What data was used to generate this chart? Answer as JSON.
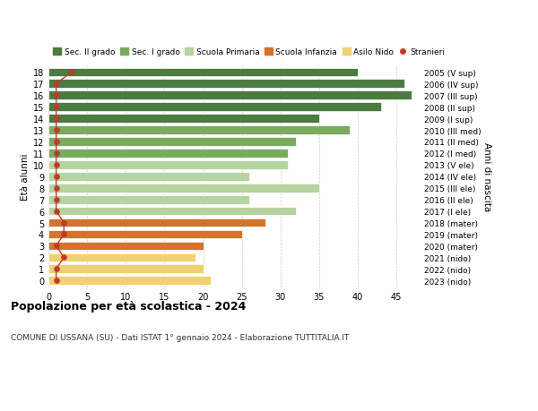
{
  "ages": [
    18,
    17,
    16,
    15,
    14,
    13,
    12,
    11,
    10,
    9,
    8,
    7,
    6,
    5,
    4,
    3,
    2,
    1,
    0
  ],
  "right_labels": [
    "2005 (V sup)",
    "2006 (IV sup)",
    "2007 (III sup)",
    "2008 (II sup)",
    "2009 (I sup)",
    "2010 (III med)",
    "2011 (II med)",
    "2012 (I med)",
    "2013 (V ele)",
    "2014 (IV ele)",
    "2015 (III ele)",
    "2016 (II ele)",
    "2017 (I ele)",
    "2018 (mater)",
    "2019 (mater)",
    "2020 (mater)",
    "2021 (nido)",
    "2022 (nido)",
    "2023 (nido)"
  ],
  "bar_values": [
    40,
    46,
    47,
    43,
    35,
    39,
    32,
    31,
    31,
    26,
    35,
    26,
    32,
    28,
    25,
    20,
    19,
    20,
    21
  ],
  "stranieri_values": [
    3,
    1,
    1,
    1,
    1,
    1,
    1,
    1,
    1,
    1,
    1,
    1,
    1,
    2,
    2,
    1,
    2,
    1,
    1
  ],
  "bar_colors": [
    "#4a7c3f",
    "#4a7c3f",
    "#4a7c3f",
    "#4a7c3f",
    "#4a7c3f",
    "#7aab5e",
    "#7aab5e",
    "#7aab5e",
    "#b5d4a0",
    "#b5d4a0",
    "#b5d4a0",
    "#b5d4a0",
    "#b5d4a0",
    "#d4732a",
    "#d4732a",
    "#d4732a",
    "#f0d070",
    "#f0d070",
    "#f0d070"
  ],
  "legend_colors": [
    "#4a7c3f",
    "#7aab5e",
    "#b5d4a0",
    "#d4732a",
    "#f0d070",
    "#c0392b"
  ],
  "legend_labels": [
    "Sec. II grado",
    "Sec. I grado",
    "Scuola Primaria",
    "Scuola Infanzia",
    "Asilo Nido",
    "Stranieri"
  ],
  "xlim": [
    0,
    48
  ],
  "xticks": [
    0,
    5,
    10,
    15,
    20,
    25,
    30,
    35,
    40,
    45
  ],
  "ylabel_left": "Età alunni",
  "ylabel_right": "Anni di nascita",
  "title": "Popolazione per età scolastica - 2024",
  "subtitle": "COMUNE DI USSANA (SU) - Dati ISTAT 1° gennaio 2024 - Elaborazione TUTTITALIA.IT",
  "bg_color": "#ffffff",
  "stranieri_color": "#c0392b",
  "bar_height": 0.75
}
